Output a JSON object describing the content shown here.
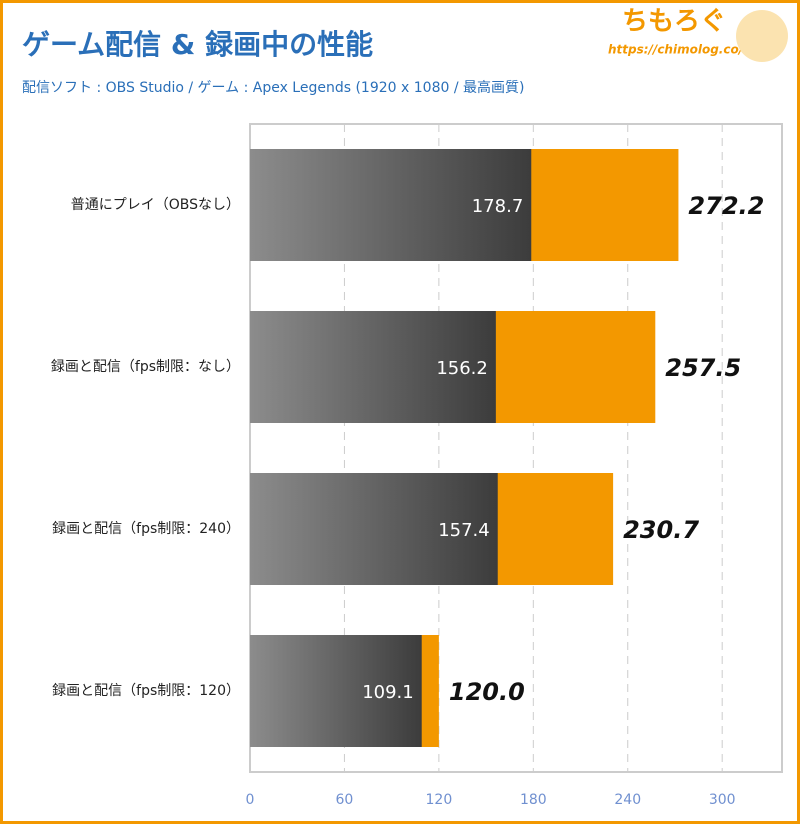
{
  "chart_data": {
    "type": "bar",
    "orientation": "horizontal",
    "title": "ゲーム配信 & 録画中の性能",
    "subtitle": "配信ソフト : OBS Studio / ゲーム : Apex Legends (1920 x 1080 / 最高画質)",
    "logo": "ちもろぐ",
    "url": "https://chimolog.co/",
    "categories": [
      "普通にプレイ（OBSなし）",
      "録画と配信（fps制限：なし）",
      "録画と配信（fps制限：240）",
      "録画と配信（fps制限：120）"
    ],
    "series": [
      {
        "color": "#f39800",
        "values": [
          272.2,
          257.5,
          230.7,
          120.0
        ],
        "value_labels": [
          "272.2",
          "257.5",
          "230.7",
          "120.0"
        ]
      },
      {
        "color": "#3c3c3c",
        "values": [
          178.7,
          156.2,
          157.4,
          109.1
        ]
      }
    ],
    "xlim": [
      0,
      338
    ],
    "xticks": [
      0,
      60,
      120,
      180,
      240,
      300
    ],
    "grid": true
  }
}
